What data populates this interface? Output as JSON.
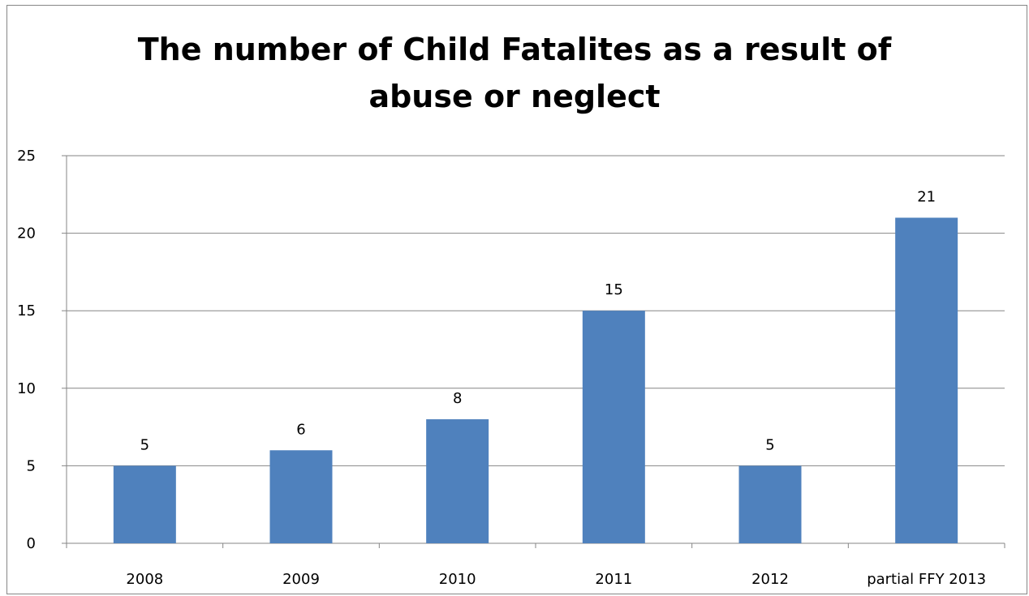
{
  "chart_data": {
    "type": "bar",
    "title_lines": [
      "The number of Child Fatalites as a result of",
      "abuse or neglect"
    ],
    "categories": [
      "2008",
      "2009",
      "2010",
      "2011",
      "2012",
      "partial FFY 2013"
    ],
    "values": [
      5,
      6,
      8,
      15,
      5,
      21
    ],
    "data_labels": [
      "5",
      "6",
      "8",
      "15",
      "5",
      "21"
    ],
    "ylim": [
      0,
      25
    ],
    "yticks": [
      "0",
      "5",
      "10",
      "15",
      "20",
      "25"
    ],
    "xlabel": "",
    "ylabel": "",
    "grid": true,
    "legend": "none",
    "colors": {
      "bar": "#4f81bd",
      "grid": "#868686",
      "axis": "#868686"
    }
  }
}
